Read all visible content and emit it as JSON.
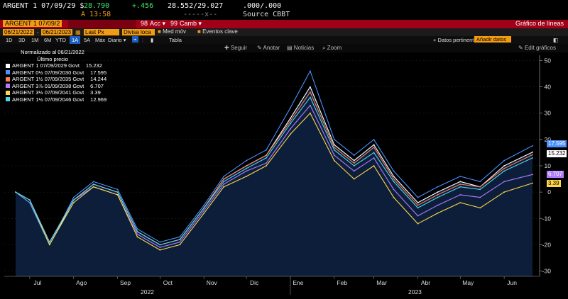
{
  "header": {
    "ticker": "ARGENT 1 07/09/29 $",
    "price": "28.790",
    "change": "+.456",
    "bid_ask": "28.552/29.027",
    "yields": ".000/.000",
    "time": "A 13:58",
    "sep": "-----x--",
    "source": "Source CBBT"
  },
  "redbar": {
    "security": "ARGENT 1 07/09/2",
    "accion_label": "Acc",
    "accion_num": "98",
    "camb_label": "Camb",
    "camb_num": "99",
    "title": "Gráfico de líneas"
  },
  "controls": {
    "date_from": "06/21/2022",
    "date_to": "06/21/2023",
    "field": "Last Px",
    "currency": "Divisa loca",
    "med_mov": "Med móv",
    "eventos": "Eventos clave"
  },
  "ranges": [
    "1D",
    "3D",
    "1M",
    "6M",
    "YTD",
    "1A",
    "5A",
    "Máx"
  ],
  "period": "Diario",
  "tabla": "Tabla",
  "datos_pert": "Datos pertinent",
  "anadir": "Añadir datos",
  "tools": {
    "seguir": "Seguir",
    "anotar": "Anotar",
    "noticias": "Noticias",
    "zoom": "Zoom",
    "edit": "Edit gráficos"
  },
  "legend": {
    "title": "Normalizado al 06/21/2022",
    "subtitle": "Último precio",
    "items": [
      {
        "label": "ARGENT 1 07/09/2029 Govt",
        "value": "15.232",
        "color": "#ffffff"
      },
      {
        "label": "ARGENT 0½ 07/09/2030 Govt",
        "value": "17.595",
        "color": "#4a90ff"
      },
      {
        "label": "ARGENT 1½ 07/09/2035 Govt",
        "value": "14.244",
        "color": "#ff7f50"
      },
      {
        "label": "ARGENT 3⅞ 01/09/2038 Govt",
        "value": "6.707",
        "color": "#b07cff"
      },
      {
        "label": "ARGENT 3½ 07/09/2041 Govt",
        "value": "3.39",
        "color": "#ffd84a"
      },
      {
        "label": "ARGENT 1½ 07/09/2046 Govt",
        "value": "12.969",
        "color": "#4fd6e8"
      }
    ]
  },
  "tags": {
    "t1": "17.595",
    "t2": "15.232",
    "t3": "6.707",
    "t4": "3.39"
  },
  "chart_data": {
    "type": "line",
    "title": "",
    "xlabel": "",
    "ylabel": "",
    "ylim": [
      -32,
      52
    ],
    "y_ticks": [
      50,
      40,
      30,
      20,
      10,
      0,
      -10,
      -20,
      -30
    ],
    "x_ticks": [
      "Jun",
      "Jul",
      "Ago",
      "Sep",
      "Oct",
      "Nov",
      "Dic",
      "Ene",
      "Feb",
      "Mar",
      "Abr",
      "May",
      "Jun"
    ],
    "year_labels": [
      "2022",
      "2023"
    ],
    "x": [
      "2022-06-21",
      "2022-07-01",
      "2022-07-15",
      "2022-08-01",
      "2022-08-15",
      "2022-09-01",
      "2022-09-15",
      "2022-10-01",
      "2022-10-15",
      "2022-11-01",
      "2022-11-15",
      "2022-12-01",
      "2022-12-15",
      "2023-01-01",
      "2023-01-15",
      "2023-02-01",
      "2023-02-15",
      "2023-03-01",
      "2023-03-15",
      "2023-04-01",
      "2023-04-15",
      "2023-05-01",
      "2023-05-15",
      "2023-06-01",
      "2023-06-21"
    ],
    "series": [
      {
        "name": "ARGENT 1 07/09/2029 Govt",
        "color": "#ffffff",
        "values": [
          0,
          -4,
          -20,
          -3,
          3,
          0,
          -15,
          -20,
          -18,
          -6,
          5,
          10,
          14,
          28,
          40,
          18,
          12,
          18,
          6,
          -4,
          0,
          4,
          2,
          10,
          15.2
        ]
      },
      {
        "name": "ARGENT 0½ 07/09/2030 Govt",
        "color": "#4a90ff",
        "values": [
          0,
          -4,
          -20,
          -2,
          4,
          1,
          -14,
          -19,
          -17,
          -5,
          6,
          12,
          16,
          32,
          46,
          20,
          14,
          20,
          8,
          -2,
          2,
          6,
          4,
          12,
          17.6
        ]
      },
      {
        "name": "ARGENT 1½ 07/09/2035 Govt",
        "color": "#ff7f50",
        "values": [
          0,
          -3,
          -19,
          -3,
          3,
          0,
          -15,
          -20,
          -18,
          -6,
          5,
          10,
          14,
          27,
          38,
          17,
          11,
          17,
          5,
          -5,
          -1,
          3,
          2,
          9,
          14.2
        ]
      },
      {
        "name": "ARGENT 3⅞ 01/09/2038 Govt",
        "color": "#b07cff",
        "values": [
          0,
          -3,
          -19,
          -3,
          2,
          -1,
          -16,
          -21,
          -19,
          -7,
          3,
          8,
          11,
          24,
          33,
          14,
          8,
          13,
          1,
          -9,
          -5,
          -1,
          -2,
          4,
          6.7
        ]
      },
      {
        "name": "ARGENT 3½ 07/09/2041 Govt",
        "color": "#ffd84a",
        "values": [
          0,
          -3,
          -20,
          -4,
          2,
          -1,
          -17,
          -22,
          -20,
          -8,
          2,
          6,
          10,
          22,
          30,
          12,
          5,
          10,
          -2,
          -12,
          -8,
          -4,
          -6,
          0,
          3.4
        ]
      },
      {
        "name": "ARGENT 1½ 07/09/2046 Govt",
        "color": "#4fd6e8",
        "values": [
          0,
          -3,
          -19,
          -3,
          3,
          0,
          -15,
          -20,
          -18,
          -6,
          4,
          9,
          13,
          26,
          36,
          16,
          10,
          15,
          4,
          -6,
          -2,
          2,
          1,
          8,
          13.0
        ]
      }
    ]
  }
}
